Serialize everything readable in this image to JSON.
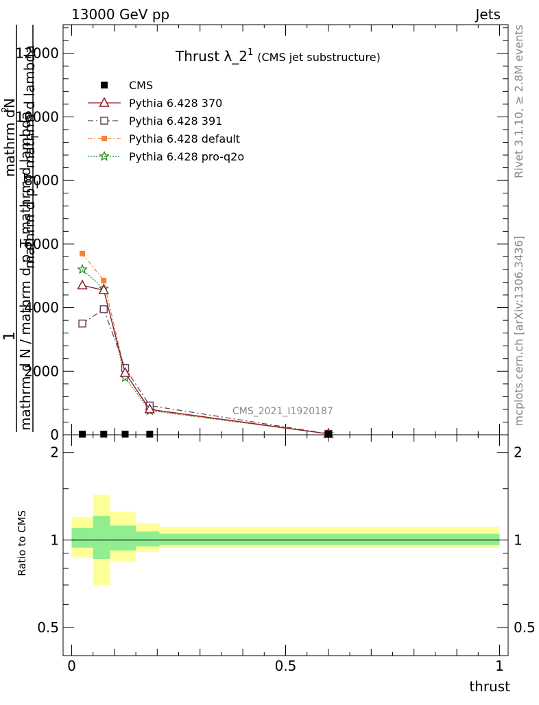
{
  "header": {
    "left": "13000 GeV pp",
    "right": "Jets"
  },
  "side_labels": {
    "rivet": "Rivet 3.1.10, ≥ 2.8M events",
    "mcplots": "mcplots.cern.ch [arXiv:1306.3436]"
  },
  "plot_title": {
    "main": "Thrust λ_2",
    "sup": "1",
    "sub": "(CMS jet substructure)"
  },
  "watermark": "CMS_2021_I1920187",
  "ylabel_top": {
    "one": "1",
    "numerator_left": "mathrm d",
    "numerator_right": "N",
    "numerator_super": "2",
    "upper_line": "mathrm d p_T mathrm d lambda",
    "lower_line": "mathrm d N / mathrm d p_T mathrm d lambda",
    "subscript_t": "T"
  },
  "ylabel_bottom": "Ratio to CMS",
  "xlabel": "thrust",
  "legend": [
    {
      "name": "CMS",
      "color": "#000000",
      "marker": "filled-square",
      "dash": ""
    },
    {
      "name": "Pythia 6.428 370",
      "color": "#8b1a2b",
      "marker": "open-triangle",
      "dash": ""
    },
    {
      "name": "Pythia 6.428 391",
      "color": "#6b4257",
      "marker": "open-square",
      "dash": "8,4,2,4"
    },
    {
      "name": "Pythia 6.428 default",
      "color": "#f5813a",
      "marker": "filled-square-small",
      "dash": "6,3,2,3"
    },
    {
      "name": "Pythia 6.428 pro-q2o",
      "color": "#1f8a1f",
      "marker": "star",
      "dash": "2,2"
    }
  ],
  "chart_data": {
    "type": "line",
    "top_panel": {
      "xlim": [
        -0.02,
        1.02
      ],
      "ylim": [
        0,
        12900
      ],
      "yticks": [
        0,
        2000,
        4000,
        6000,
        8000,
        10000,
        12000
      ],
      "ytick_labels": [
        "0",
        "2000",
        "4000",
        "6000",
        "8000",
        "10000",
        "12000"
      ],
      "x": [
        0.025,
        0.075,
        0.125,
        0.1825,
        0.6
      ],
      "series": [
        {
          "name": "CMS",
          "values": [
            0,
            0,
            0,
            0,
            0
          ]
        },
        {
          "name": "Pythia 6.428 370",
          "values": [
            4700,
            4550,
            1950,
            800,
            30
          ]
        },
        {
          "name": "Pythia 6.428 391",
          "values": [
            3500,
            3950,
            2100,
            920,
            30
          ]
        },
        {
          "name": "Pythia 6.428 default",
          "values": [
            5700,
            4850,
            1950,
            770,
            30
          ]
        },
        {
          "name": "Pythia 6.428 pro-q2o",
          "values": [
            5200,
            4600,
            1800,
            760,
            30
          ]
        }
      ]
    },
    "ratio_panel": {
      "ylim": [
        0.4,
        2.3
      ],
      "log_scale": true,
      "yticks": [
        0.5,
        1,
        2
      ],
      "ytick_labels": [
        "0.5",
        "1",
        "2"
      ],
      "xticks": [
        0,
        0.5,
        1
      ],
      "xtick_labels": [
        "0",
        "0.5",
        "1"
      ],
      "reference": 1,
      "bins": [
        {
          "x0": 0.0,
          "x1": 0.05,
          "inner": [
            0.94,
            1.1
          ],
          "outer": [
            0.87,
            1.2
          ]
        },
        {
          "x0": 0.05,
          "x1": 0.09,
          "inner": [
            0.86,
            1.21
          ],
          "outer": [
            0.7,
            1.43
          ]
        },
        {
          "x0": 0.09,
          "x1": 0.15,
          "inner": [
            0.92,
            1.12
          ],
          "outer": [
            0.84,
            1.25
          ]
        },
        {
          "x0": 0.15,
          "x1": 0.205,
          "inner": [
            0.95,
            1.07
          ],
          "outer": [
            0.91,
            1.14
          ]
        },
        {
          "x0": 0.205,
          "x1": 1.0,
          "inner": [
            0.96,
            1.05
          ],
          "outer": [
            0.94,
            1.11
          ]
        }
      ]
    },
    "band_colors": {
      "inner": "#90ee90",
      "outer": "#ffff99"
    }
  }
}
